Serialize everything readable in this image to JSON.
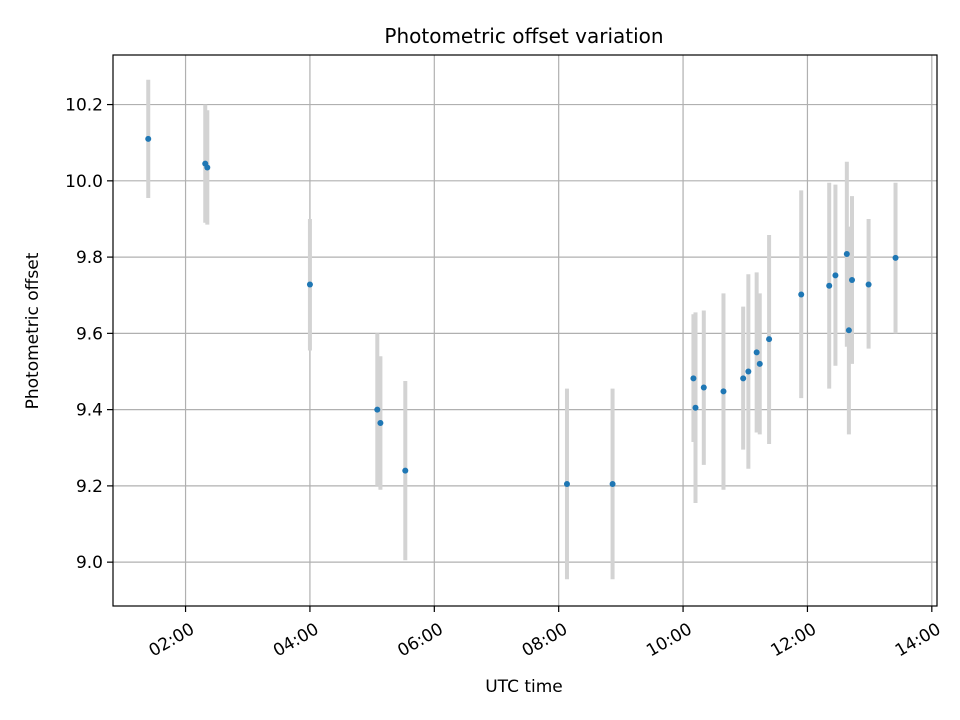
{
  "chart_data": {
    "type": "scatter",
    "title": "Photometric offset variation",
    "xlabel": "UTC time",
    "ylabel": "Photometric offset",
    "grid": true,
    "xlim": [
      "00:50",
      "14:05"
    ],
    "ylim": [
      8.885,
      10.33
    ],
    "x_ticks": [
      "02:00",
      "04:00",
      "06:00",
      "08:00",
      "10:00",
      "12:00",
      "14:00"
    ],
    "y_ticks": [
      "9.0",
      "9.2",
      "9.4",
      "9.6",
      "9.8",
      "10.0",
      "10.2"
    ],
    "colors": {
      "marker": "#1f77b4",
      "errorbar": "#d3d3d3",
      "grid": "#b0b0b0"
    },
    "points": [
      {
        "time": "01:24",
        "y": 10.11,
        "ylo": 9.955,
        "yhi": 10.265
      },
      {
        "time": "02:19",
        "y": 10.045,
        "ylo": 9.89,
        "yhi": 10.2
      },
      {
        "time": "02:21",
        "y": 10.035,
        "ylo": 9.885,
        "yhi": 10.185
      },
      {
        "time": "04:00",
        "y": 9.728,
        "ylo": 9.555,
        "yhi": 9.9
      },
      {
        "time": "05:05",
        "y": 9.4,
        "ylo": 9.2,
        "yhi": 9.6
      },
      {
        "time": "05:08",
        "y": 9.365,
        "ylo": 9.19,
        "yhi": 9.54
      },
      {
        "time": "05:32",
        "y": 9.24,
        "ylo": 9.005,
        "yhi": 9.475
      },
      {
        "time": "08:08",
        "y": 9.205,
        "ylo": 8.955,
        "yhi": 9.455
      },
      {
        "time": "08:52",
        "y": 9.205,
        "ylo": 8.955,
        "yhi": 9.455
      },
      {
        "time": "10:10",
        "y": 9.482,
        "ylo": 9.315,
        "yhi": 9.65
      },
      {
        "time": "10:12",
        "y": 9.405,
        "ylo": 9.155,
        "yhi": 9.655
      },
      {
        "time": "10:20",
        "y": 9.458,
        "ylo": 9.255,
        "yhi": 9.66
      },
      {
        "time": "10:39",
        "y": 9.448,
        "ylo": 9.19,
        "yhi": 9.705
      },
      {
        "time": "10:58",
        "y": 9.482,
        "ylo": 9.295,
        "yhi": 9.67
      },
      {
        "time": "11:03",
        "y": 9.5,
        "ylo": 9.245,
        "yhi": 9.755
      },
      {
        "time": "11:11",
        "y": 9.55,
        "ylo": 9.34,
        "yhi": 9.76
      },
      {
        "time": "11:14",
        "y": 9.52,
        "ylo": 9.335,
        "yhi": 9.705
      },
      {
        "time": "11:23",
        "y": 9.585,
        "ylo": 9.31,
        "yhi": 9.858
      },
      {
        "time": "11:54",
        "y": 9.702,
        "ylo": 9.43,
        "yhi": 9.975
      },
      {
        "time": "12:21",
        "y": 9.725,
        "ylo": 9.455,
        "yhi": 9.995
      },
      {
        "time": "12:27",
        "y": 9.752,
        "ylo": 9.515,
        "yhi": 9.99
      },
      {
        "time": "12:38",
        "y": 9.808,
        "ylo": 9.565,
        "yhi": 10.05
      },
      {
        "time": "12:40",
        "y": 9.608,
        "ylo": 9.335,
        "yhi": 9.88
      },
      {
        "time": "12:43",
        "y": 9.74,
        "ylo": 9.52,
        "yhi": 9.96
      },
      {
        "time": "12:59",
        "y": 9.728,
        "ylo": 9.56,
        "yhi": 9.9
      },
      {
        "time": "13:25",
        "y": 9.798,
        "ylo": 9.6,
        "yhi": 9.995
      }
    ]
  }
}
